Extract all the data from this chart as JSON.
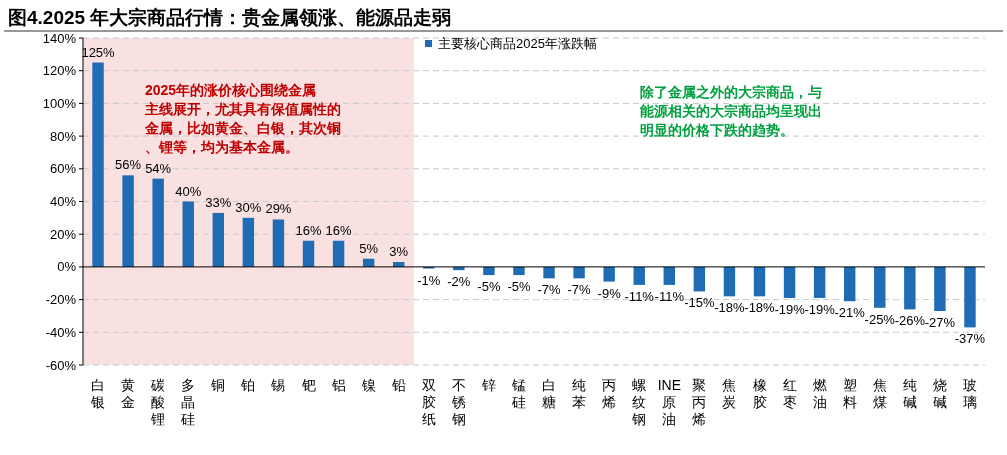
{
  "chart_data": {
    "type": "bar",
    "title": "图4.2025 年大宗商品行情：贵金属领涨、能源品走弱",
    "categories": [
      "白银",
      "黄金",
      "碳酸锂",
      "多晶硅",
      "铜",
      "铂",
      "锡",
      "钯",
      "铝",
      "镍",
      "铅",
      "双胶纸",
      "不锈钢",
      "锌",
      "锰硅",
      "白糖",
      "纯苯",
      "丙烯",
      "螺纹钢",
      "INE原油",
      "聚丙烯",
      "焦炭",
      "橡胶",
      "红枣",
      "燃油",
      "塑料",
      "焦煤",
      "纯碱",
      "烧碱",
      "玻璃"
    ],
    "series": [
      {
        "name": "主要核心商品2025年涨跌幅",
        "color": "#1f6cb5",
        "values": [
          125,
          56,
          54,
          40,
          33,
          30,
          29,
          16,
          16,
          5,
          3,
          -1,
          -2,
          -5,
          -5,
          -7,
          -7,
          -9,
          -11,
          -11,
          -15,
          -18,
          -18,
          -19,
          -19,
          -21,
          -25,
          -26,
          -27,
          -37
        ],
        "value_labels": [
          "125%",
          "56%",
          "54%",
          "40%",
          "33%",
          "30%",
          "29%",
          "16%",
          "16%",
          "5%",
          "3%",
          "-1%",
          "-2%",
          "-5%",
          "-5%",
          "-7%",
          "-7%",
          "-9%",
          "-11%",
          "-11%",
          "-15%",
          "-18%",
          "-18%",
          "-19%",
          "-19%",
          "-21%",
          "-25%",
          "-26%",
          "-27%",
          "-37%"
        ]
      }
    ],
    "ylim": [
      -60,
      140
    ],
    "yticks": [
      {
        "value": -60,
        "label": "-60%"
      },
      {
        "value": -40,
        "label": "-40%"
      },
      {
        "value": -20,
        "label": "-20%"
      },
      {
        "value": 0,
        "label": "0%"
      },
      {
        "value": 20,
        "label": "20%"
      },
      {
        "value": 40,
        "label": "40%"
      },
      {
        "value": 60,
        "label": "60%"
      },
      {
        "value": 80,
        "label": "80%"
      },
      {
        "value": 100,
        "label": "100%"
      },
      {
        "value": 120,
        "label": "120%"
      },
      {
        "value": 140,
        "label": "140%"
      }
    ],
    "grid": "y",
    "legend": "top right",
    "bands": [
      {
        "axis": "x",
        "from": "白银",
        "to": "铅",
        "color": "#f9e1e1"
      }
    ],
    "annotations": [
      "2025年的涨价核心围绕金属主线展开，尤其具有保值属性的金属，比如黄金、白银，其次铜、锂等，均为基本金属。",
      "除了金属之外的大宗商品，与能源相关的大宗商品均呈现出明显的价格下跌的趋势。"
    ]
  }
}
